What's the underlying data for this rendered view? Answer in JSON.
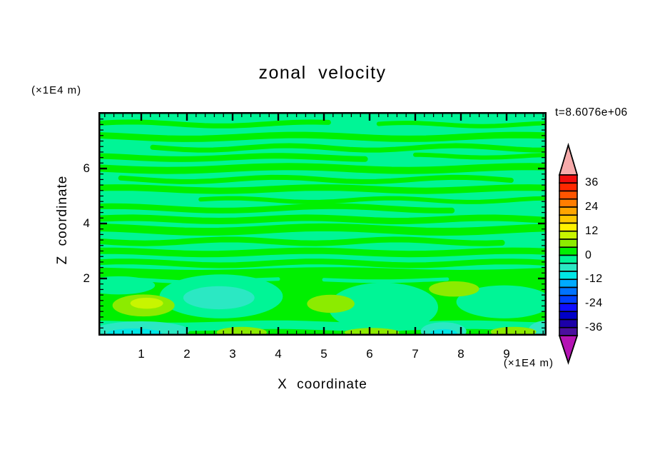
{
  "title": "zonal velocity",
  "time_label": "t=8.6076e+06",
  "axes": {
    "x": {
      "label": "X coordinate",
      "unit": "(×1E4 m)",
      "ticks": [
        1,
        2,
        3,
        4,
        5,
        6,
        7,
        8,
        9
      ],
      "range": [
        0.06,
        9.88
      ],
      "minor_step": 0.2
    },
    "z": {
      "label": "Z coordinate",
      "unit": "(×1E4 m)",
      "ticks": [
        2,
        4,
        6
      ],
      "range": [
        0,
        8.06
      ],
      "minor_step": 0.2
    }
  },
  "colorbar": {
    "labels": [
      "36",
      "24",
      "12",
      "0",
      "-12",
      "-24",
      "-36"
    ],
    "label_levels": [
      36,
      24,
      12,
      0,
      -12,
      -24,
      -36
    ],
    "level_min": -40,
    "level_max": 40,
    "level_step": 4,
    "band_colors_top_to_bottom": [
      "#F20D0D",
      "#FF2800",
      "#FF5500",
      "#FF7D00",
      "#FFA500",
      "#FFC800",
      "#FFF000",
      "#C8F500",
      "#8CEB00",
      "#00F000",
      "#00F596",
      "#2BE8C3",
      "#00E6E6",
      "#00AAFF",
      "#0073FF",
      "#0041FF",
      "#0F0FFF",
      "#0000C8",
      "#1C00A8",
      "#4B0F9E"
    ],
    "over_arrow_color": "#F7ABAB",
    "under_arrow_color": "#B414B4"
  },
  "chart_data": {
    "type": "filled_contour",
    "title": "zonal velocity",
    "xlabel": "X coordinate",
    "ylabel": "Z coordinate",
    "x_unit": "×1E4 m",
    "z_unit": "×1E4 m",
    "time": "t=8.6076e+06",
    "xlim": [
      0,
      9.9
    ],
    "zlim": [
      0,
      8.06
    ],
    "contour_levels": [
      -40,
      -36,
      -32,
      -28,
      -24,
      -20,
      -16,
      -12,
      -8,
      -4,
      0,
      4,
      8,
      12,
      16,
      20,
      24,
      28,
      32,
      36,
      40
    ],
    "field_summary": "Zonal velocity field near zero almost everywhere: wavy horizontal bands alternating between the 0..4 band (green) and the -4..0 band (spring green) above z=2; below z=2 stronger structure with patches of +4..12 (chartreuse/yellow-green), -4..-8 (turquoise) and -8..-12 (cyan) near the bottom boundary.",
    "palette": {
      "bg": "#00F596",
      "spring": "#00F596",
      "green": "#00F000",
      "turq": "#2BE8C3",
      "cyan": "#00E6E6",
      "chart": "#8CEB00",
      "chart2": "#C8F500"
    },
    "field_render": {
      "upper_stripes_green": [
        [
          7.62,
          0.06,
          5.1,
          7,
          0.07,
          1.6,
          0.3
        ],
        [
          7.6,
          6.2,
          9.88,
          6,
          0.06,
          1.9,
          1.2
        ],
        [
          7.15,
          0.06,
          9.88,
          9,
          0.07,
          1.3,
          2.1
        ],
        [
          6.75,
          1.25,
          9.88,
          7,
          0.08,
          1.7,
          0.7
        ],
        [
          6.4,
          0.06,
          5.9,
          8,
          0.06,
          1.5,
          1.9
        ],
        [
          6.45,
          7.0,
          9.88,
          6,
          0.05,
          2.0,
          0.2
        ],
        [
          6.0,
          0.06,
          9.88,
          10,
          0.07,
          1.2,
          2.8
        ],
        [
          5.6,
          0.55,
          9.1,
          7,
          0.08,
          1.6,
          1.5
        ],
        [
          5.25,
          0.06,
          9.88,
          9,
          0.06,
          1.4,
          0.9
        ],
        [
          4.85,
          2.3,
          9.88,
          6,
          0.07,
          1.8,
          2.5
        ],
        [
          4.55,
          0.06,
          7.8,
          8,
          0.08,
          1.3,
          1.1
        ],
        [
          4.15,
          0.06,
          9.88,
          9,
          0.06,
          1.6,
          0.4
        ],
        [
          3.78,
          0.06,
          9.88,
          11,
          0.08,
          1.2,
          1.8
        ],
        [
          3.35,
          0.06,
          8.9,
          8,
          0.07,
          1.7,
          2.9
        ],
        [
          2.95,
          0.06,
          9.88,
          9,
          0.06,
          1.4,
          1.3
        ],
        [
          2.55,
          0.06,
          9.88,
          8,
          0.07,
          1.5,
          0.6
        ],
        [
          2.18,
          0.06,
          9.88,
          14,
          0.05,
          1.1,
          2.2
        ]
      ],
      "lower_green_top_z": 2.28,
      "lower_features": [
        [
          "s",
          1.92,
          0.25,
          4.0,
          5,
          0.06,
          1.7,
          0.8,
          "spring"
        ],
        [
          "s",
          1.95,
          5.0,
          7.7,
          5,
          0.05,
          1.4,
          2.3,
          "spring"
        ],
        [
          "e",
          2.75,
          1.35,
          1.35,
          0.8,
          "spring"
        ],
        [
          "e",
          6.3,
          0.95,
          1.2,
          0.9,
          "spring"
        ],
        [
          "e",
          8.95,
          1.15,
          1.05,
          0.6,
          "spring"
        ],
        [
          "e",
          0.5,
          1.75,
          0.8,
          0.33,
          "spring"
        ],
        [
          "s",
          0.28,
          0.06,
          9.88,
          12,
          0.04,
          1.5,
          2.0,
          "spring"
        ],
        [
          "e",
          2.7,
          1.3,
          0.78,
          0.42,
          "turq"
        ],
        [
          "e",
          1.05,
          1.02,
          0.68,
          0.4,
          "chart"
        ],
        [
          "e",
          1.12,
          1.1,
          0.36,
          0.2,
          "chart2"
        ],
        [
          "e",
          5.15,
          1.08,
          0.52,
          0.33,
          "chart"
        ],
        [
          "e",
          7.85,
          1.62,
          0.55,
          0.28,
          "chart"
        ],
        [
          "e",
          1.0,
          0.1,
          1.05,
          0.34,
          "turq"
        ],
        [
          "e",
          0.85,
          0.0,
          0.6,
          0.18,
          "cyan"
        ],
        [
          "e",
          7.62,
          0.08,
          0.5,
          0.33,
          "turq"
        ],
        [
          "e",
          7.62,
          0.0,
          0.3,
          0.16,
          "cyan"
        ],
        [
          "e",
          9.88,
          0.12,
          0.4,
          0.35,
          "turq"
        ],
        [
          "e",
          3.2,
          0.04,
          0.55,
          0.2,
          "chart"
        ],
        [
          "e",
          6.05,
          0.04,
          0.6,
          0.16,
          "chart"
        ],
        [
          "e",
          9.15,
          0.06,
          0.5,
          0.18,
          "chart"
        ]
      ]
    }
  }
}
